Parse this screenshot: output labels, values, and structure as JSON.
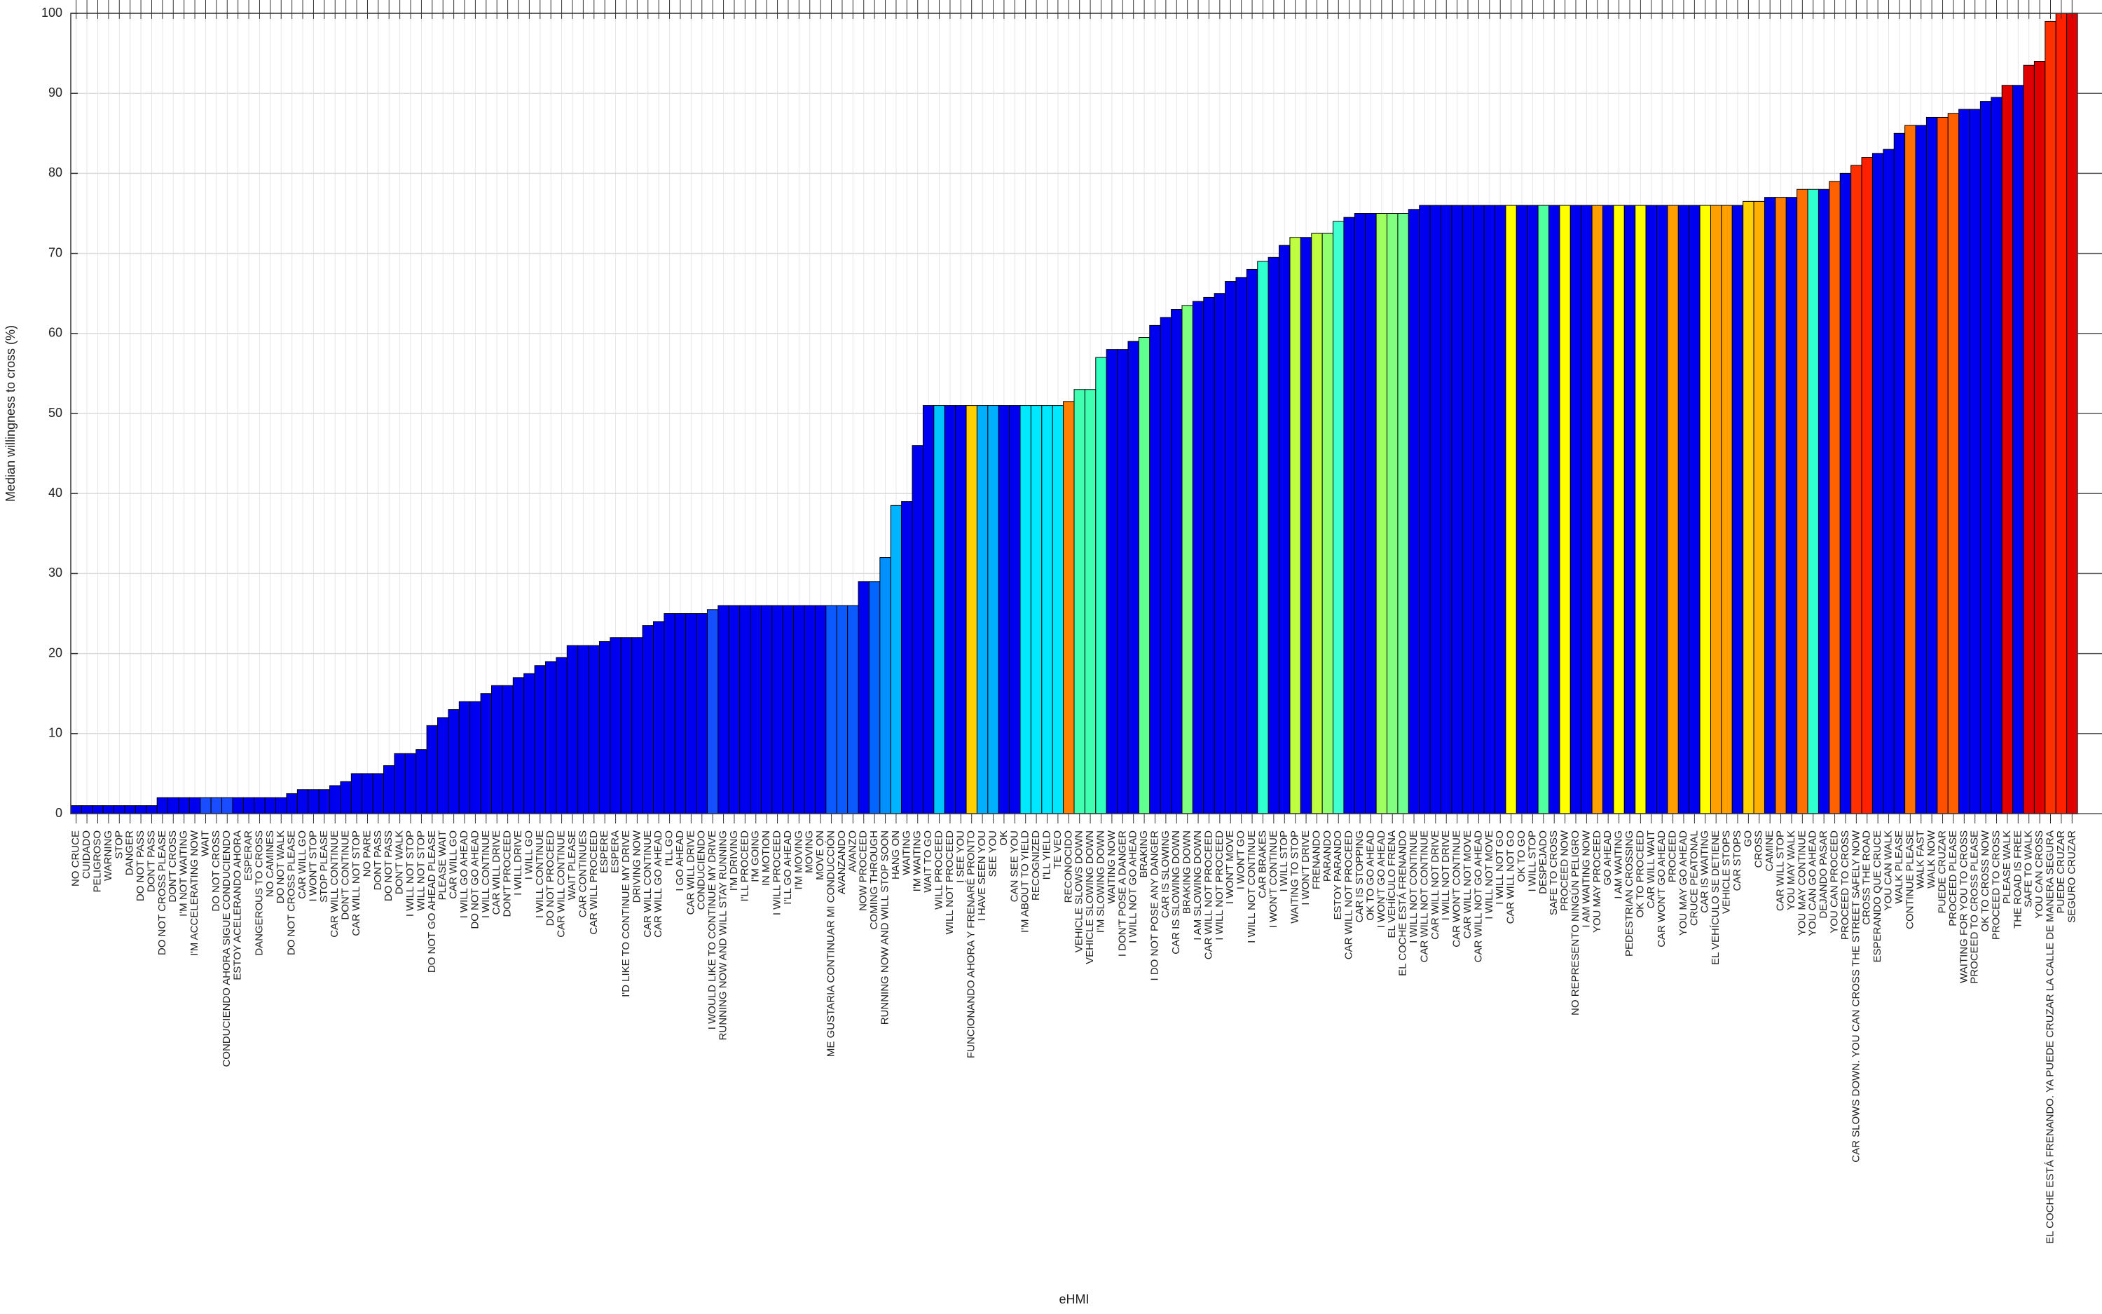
{
  "chart_data": {
    "type": "bar",
    "ylabel": "Median willingness to cross (%)",
    "xlabel": "eHMI",
    "ylim": [
      0,
      100
    ],
    "yticks": [
      0,
      10,
      20,
      30,
      40,
      50,
      60,
      70,
      80,
      90,
      100
    ],
    "grid": true,
    "categories": [
      "NO CRUCE",
      "CUIDADO",
      "PELIGROSO",
      "WARNING",
      "STOP",
      "DANGER",
      "DO NOT PASS",
      "DON'T PASS",
      "DO NOT CROSS PLEASE",
      "DON'T CROSS",
      "I'M NOT WAITING",
      "I'M ACCELERATING NOW",
      "WAIT",
      "DO NOT CROSS",
      "CONDUCIENDO AHORA SIGUE CONDUCIENDO",
      "ESTOY ACELERANDO AHORA",
      "ESPERAR",
      "DANGEROUS TO CROSS",
      "NO CAMINES",
      "DO NOT WALK",
      "DO NOT CROSS PLEASE",
      "CAR WILL GO",
      "I WON'T STOP",
      "STOP PLEASE",
      "CAR WILL CONTINUE",
      "DON'T CONTINUE",
      "CAR WILL NOT STOP",
      "NO PARE",
      "DONT PASS",
      "DO NOT PASS",
      "DON'T WALK",
      "I WILL NOT STOP",
      "WILL NOT STOP",
      "DO NOT GO AHEAD PLEASE",
      "PLEASE WAIT",
      "CAR WILL GO",
      "I WILL GO AHEAD",
      "DO NOT GO AHEAD",
      "I WILL CONTINUE",
      "CAR WILL DRIVE",
      "DON'T PROCEED",
      "I WILL DRIVE",
      "I WILL GO",
      "I WILL CONTINUE",
      "DO NOT PROCEED",
      "CAR WILL CONTINUE",
      "WAIT PLEASE",
      "CAR CONTINUES",
      "CAR WILL PROCEED",
      "ESPERE",
      "ESPERA",
      "I'D LIKE TO CONTINUE MY DRIVE",
      "DRIVING NOW",
      "CAR WILL CONTINUE",
      "CAR WILL GO AHEAD",
      "I'LL GO",
      "I GO AHEAD",
      "CAR WILL DRIVE",
      "CONDUCIENDO",
      "I WOULD LIKE TO CONTINUE MY DRIVE",
      "RUNNING NOW AND WILL STAY RUNNING",
      "I'M DRIVING",
      "I'LL PROCEED",
      "I'M GOING",
      "IN MOTION",
      "I WILL PROCEED",
      "I'LL GO AHEAD",
      "I'M MOVING",
      "MOVING",
      "MOVE ON",
      "ME GUSTARIA CONTINUAR MI CONDUCCIÓN",
      "AVANZANDO",
      "AVANZO",
      "NOW PROCEED",
      "COMING THROUGH",
      "RUNNING NOW AND WILL STOP SOON",
      "HANG ON",
      "WAITING",
      "I'M WAITING",
      "WAIT TO GO",
      "WILL PROCEED",
      "WILL NOT PROCEED",
      "I SEE YOU",
      "FUNCIONANDO AHORA Y FRENARÉ PRONTO",
      "I HAVE SEEN YOU",
      "SEE YOU",
      "OK",
      "CAN SEE YOU",
      "I'M ABOUT TO YIELD",
      "RECOGNIZED",
      "I'LL YIELD",
      "TE VEO",
      "RECONOCIDO",
      "VEHICLE SLOWS DOWN",
      "VEHICLE SLOWING DOWN",
      "I'M SLOWING DOWN",
      "WAITING NOW",
      "I DON'T POSE A DANGER",
      "I WILL NOT GO AHEAD",
      "BRAKING",
      "I DO NOT POSE ANY DANGER",
      "CAR IS SLOWING",
      "CAR IS SLOWING DOWN",
      "BRAKING DOWN",
      "I AM SLOWING DOWN",
      "CAR WILL NOT PROCEED",
      "I WILL NOT PROCEED",
      "I WON'T MOVE",
      "I WON'T GO",
      "I WILL NOT CONTINUE",
      "CAR BRAKES",
      "I WON'T CONTINUE",
      "I WILL STOP",
      "WAITING TO STOP",
      "I WON'T DRIVE",
      "FRENANDO",
      "PARANDO",
      "ESTOY PARANDO",
      "CAR WILL NOT PROCEED",
      "CAR IS STOPPING",
      "OK TO GO AHEAD",
      "I WON'T GO AHEAD",
      "EL VEHÍCULO FRENA",
      "EL COCHE ESTÁ FRENANDO",
      "I WILL NOT CONTINUE",
      "CAR WILL NOT CONTINUE",
      "CAR WILL NOT DRIVE",
      "I WILL NOT DRIVE",
      "CAR WON'T CONTINUE",
      "CAR WILL NOT MOVE",
      "CAR WILL NOT GO AHEAD",
      "I WILL NOT MOVE",
      "I WILL NOT GO",
      "CAR WILL NOT GO",
      "OK TO GO",
      "I WILL STOP",
      "DESPEJADO",
      "SAFE TO CROSS",
      "PROCEED NOW",
      "NO REPRESENTO NINGÚN PELIGRO",
      "I AM WAITING NOW",
      "YOU MAY PROCEED",
      "GO AHEAD",
      "I AM WAITING",
      "PEDESTRIAN CROSSING",
      "OK TO PROCEED",
      "CAR WILL WAIT",
      "CAR WON'T GO AHEAD",
      "PROCEED",
      "YOU MAY GO AHEAD",
      "CRUCE PEATONAL",
      "CAR IS WAITING",
      "EL VEHÍCULO SE DETIENE",
      "VEHICLE STOPS",
      "CAR STOPS",
      "GO",
      "CROSS",
      "CAMINE",
      "CAR WILL STOP",
      "YOU MAY WALK",
      "YOU MAY CONTINUE",
      "YOU CAN GO AHEAD",
      "DEJANDO PASAR",
      "YOU CAN PROCEED",
      "PROCEED TO CROSS",
      "CAR SLOWS DOWN. YOU CAN CROSS THE STREET SAFELY NOW",
      "CROSS THE ROAD",
      "ESPERANDO QUE CRUCE",
      "YOU CAN WALK",
      "WALK PLEASE",
      "CONTINUE PLEASE",
      "WALK FAST",
      "WALK NOW",
      "PUEDE CRUZAR",
      "PROCEED PLEASE",
      "WAITING FOR YOU TO CROSS",
      "PROCEED TO CROSS PLEASE",
      "OK TO CROSS NOW",
      "PROCEED TO CROSS",
      "PLEASE WALK",
      "THE ROAD IS FREE",
      "SAFE TO WALK",
      "YOU CAN CROSS",
      "EL COCHE ESTÁ FRENANDO. YA PUEDE CRUZAR LA CALLE DE MANERA SEGURA",
      "PUEDE CRUZAR",
      "SEGURO CRUZAR"
    ],
    "values": [
      1,
      1,
      1,
      1,
      1,
      1,
      1,
      1,
      2,
      2,
      2,
      2,
      2,
      2,
      2,
      2,
      2,
      2,
      2,
      2,
      2.5,
      3,
      3,
      3,
      3.5,
      4,
      5,
      5,
      5,
      6,
      7.5,
      7.5,
      8,
      11,
      12,
      13,
      14,
      14,
      15,
      16,
      16,
      17,
      17.5,
      18.5,
      19,
      19.5,
      21,
      21,
      21,
      21.5,
      22,
      22,
      22,
      23.5,
      24,
      25,
      25,
      25,
      25,
      25.5,
      26,
      26,
      26,
      26,
      26,
      26,
      26,
      26,
      26,
      26,
      26,
      26,
      26,
      29,
      29,
      32,
      38.5,
      39,
      46,
      51,
      51,
      51,
      51,
      51,
      51,
      51,
      51,
      51,
      51,
      51,
      51,
      51,
      51.5,
      53,
      53,
      57,
      58,
      58,
      59,
      59.5,
      61,
      62,
      63,
      63.5,
      64,
      64.5,
      65,
      66.5,
      67,
      68,
      69,
      69.5,
      71,
      72,
      72,
      72.5,
      72.5,
      74,
      74.5,
      75,
      75,
      75,
      75,
      75,
      75.5,
      76,
      76,
      76,
      76,
      76,
      76,
      76,
      76,
      76,
      76,
      76,
      76,
      76,
      76,
      76,
      76,
      76,
      76,
      76,
      76,
      76,
      76,
      76,
      76,
      76,
      76,
      76,
      76,
      76,
      76,
      76.5,
      76.5,
      77,
      77,
      77,
      78,
      78,
      78,
      79,
      80,
      81,
      82,
      82.5,
      83,
      85,
      86,
      86,
      87,
      87,
      87.5,
      88,
      88,
      89,
      89.5,
      91,
      91,
      93.5,
      94,
      99,
      100,
      100
    ],
    "colors": [
      "#0000f0",
      "#0000f0",
      "#0000f0",
      "#0000f0",
      "#0000f0",
      "#0000f0",
      "#0000f0",
      "#0000f0",
      "#0000f0",
      "#0000f0",
      "#0000f0",
      "#0000f0",
      "#1a4dff",
      "#1a4dff",
      "#1a4dff",
      "#0000f0",
      "#0000f0",
      "#0000f0",
      "#0000f0",
      "#0000f0",
      "#0000f0",
      "#0000f0",
      "#0000f0",
      "#0000f0",
      "#0000f0",
      "#0000f0",
      "#0000f0",
      "#0000f0",
      "#0000f0",
      "#0000f0",
      "#0000f0",
      "#0000f0",
      "#0000f0",
      "#0000f0",
      "#0000f0",
      "#0000f0",
      "#0000f0",
      "#0000f0",
      "#0000f0",
      "#0000f0",
      "#0000f0",
      "#0000f0",
      "#0000f0",
      "#0000f0",
      "#0000f0",
      "#0000f0",
      "#0000f0",
      "#0000f0",
      "#0000f0",
      "#0000f0",
      "#0000f0",
      "#0000f0",
      "#0000f0",
      "#0000f0",
      "#0000f0",
      "#0000f0",
      "#0000f0",
      "#0000f0",
      "#0000f0",
      "#1450ff",
      "#0000f0",
      "#0000f0",
      "#0000f0",
      "#0000f0",
      "#0000f0",
      "#0000f0",
      "#0000f0",
      "#0000f0",
      "#0000f0",
      "#0000f0",
      "#0a5aff",
      "#0a5aff",
      "#0a5aff",
      "#0000f0",
      "#0064ff",
      "#0090ff",
      "#00b4ff",
      "#0000f0",
      "#0000f0",
      "#0000f0",
      "#00c8ff",
      "#0000f0",
      "#0000f0",
      "#ffd000",
      "#00b0ff",
      "#00b0ff",
      "#0000f0",
      "#0000f0",
      "#00e8ff",
      "#00e8ff",
      "#00e8ff",
      "#00e8ff",
      "#ff8000",
      "#40ffb0",
      "#40ffb0",
      "#30ffc0",
      "#0000f0",
      "#0000f0",
      "#0000f0",
      "#60ff90",
      "#0000f0",
      "#0000f0",
      "#0000f0",
      "#80ff80",
      "#0000f0",
      "#0000f0",
      "#0000f0",
      "#0000f0",
      "#0000f0",
      "#0000f0",
      "#30ffd0",
      "#0000f0",
      "#0000f0",
      "#c0ff40",
      "#0000f0",
      "#c0ff40",
      "#90ff70",
      "#40ffd0",
      "#0000f0",
      "#0000f0",
      "#0000f0",
      "#a0ff60",
      "#80ff80",
      "#70ff90",
      "#0000f0",
      "#0000f0",
      "#0000f0",
      "#0000f0",
      "#0000f0",
      "#0000f0",
      "#0000f0",
      "#0000f0",
      "#0000f0",
      "#ffff00",
      "#0000f0",
      "#0000f0",
      "#50ffa0",
      "#0000f0",
      "#ffff00",
      "#0000f0",
      "#0000f0",
      "#ffa000",
      "#0000f0",
      "#ffff00",
      "#0000f0",
      "#ffff00",
      "#0000f0",
      "#0000f0",
      "#ffa000",
      "#0000f0",
      "#0000f0",
      "#ffff00",
      "#ffa000",
      "#ffa000",
      "#0000f0",
      "#ffd000",
      "#ffb000",
      "#0000f0",
      "#ff8000",
      "#0000f0",
      "#ff7000",
      "#30ffd0",
      "#0000f0",
      "#ff6000",
      "#0000f0",
      "#ff3000",
      "#ff2000",
      "#0000f0",
      "#0000f0",
      "#0000f0",
      "#ff7000",
      "#0000f0",
      "#0000f0",
      "#ff5000",
      "#ff6000",
      "#0000f0",
      "#0000f0",
      "#0000f0",
      "#0000f0",
      "#e00000",
      "#0000f0",
      "#e00000",
      "#e00000",
      "#ff3000",
      "#ff2000",
      "#e00000"
    ]
  }
}
